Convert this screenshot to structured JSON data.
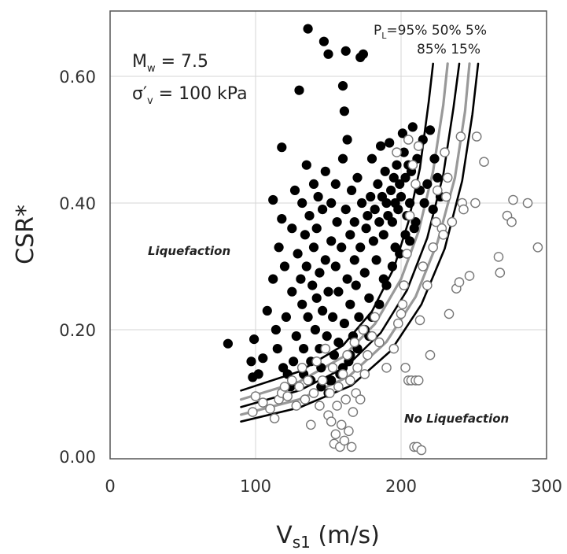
{
  "chart_data": {
    "type": "scatter",
    "xlabel": "V",
    "xlabel_sub": "s1",
    "xlabel_unit": " (m/s)",
    "ylabel": "CSR*",
    "xlim": [
      0,
      300
    ],
    "ylim": [
      0,
      0.7
    ],
    "xticks": [
      {
        "v": 0,
        "label": "0"
      },
      {
        "v": 100,
        "label": "100"
      },
      {
        "v": 200,
        "label": "200"
      },
      {
        "v": 300,
        "label": "300"
      }
    ],
    "yticks": [
      {
        "v": 0.0,
        "label": "0.00"
      },
      {
        "v": 0.2,
        "label": "0.20"
      },
      {
        "v": 0.4,
        "label": "0.40"
      },
      {
        "v": 0.6,
        "label": "0.60"
      }
    ],
    "grid": true,
    "annotations": {
      "magnitude": {
        "main": "M",
        "sub": "w",
        "rest": " = 7.5"
      },
      "stress": {
        "main": "σ′",
        "sub": "v",
        "rest": " = 100 kPa"
      },
      "pl_line1": {
        "main": "P",
        "sub": "L",
        "rest": "=95%  50%  5%"
      },
      "pl_line2": "85% 15%",
      "liquefaction": "Liquefaction",
      "no_liquefaction": "No Liquefaction"
    },
    "curves": [
      {
        "name": "95%",
        "color": "#000000",
        "x": [
          90,
          130,
          160,
          180,
          195,
          205,
          213,
          219,
          222
        ],
        "y": [
          0.104,
          0.134,
          0.175,
          0.229,
          0.297,
          0.37,
          0.455,
          0.56,
          0.62
        ]
      },
      {
        "name": "85%",
        "color": "#999999",
        "x": [
          90,
          130,
          160,
          182,
          200,
          212,
          222,
          229,
          232
        ],
        "y": [
          0.09,
          0.118,
          0.157,
          0.209,
          0.28,
          0.355,
          0.45,
          0.555,
          0.62
        ]
      },
      {
        "name": "50%",
        "color": "#000000",
        "x": [
          90,
          130,
          162,
          186,
          204,
          218,
          229,
          236,
          240
        ],
        "y": [
          0.078,
          0.104,
          0.141,
          0.195,
          0.262,
          0.345,
          0.445,
          0.55,
          0.62
        ]
      },
      {
        "name": "15%",
        "color": "#999999",
        "x": [
          90,
          130,
          164,
          190,
          210,
          225,
          237,
          244,
          247
        ],
        "y": [
          0.066,
          0.09,
          0.126,
          0.181,
          0.252,
          0.338,
          0.44,
          0.545,
          0.62
        ]
      },
      {
        "name": "5%",
        "color": "#000000",
        "x": [
          90,
          130,
          166,
          193,
          214,
          230,
          242,
          249,
          253
        ],
        "y": [
          0.055,
          0.077,
          0.112,
          0.167,
          0.24,
          0.328,
          0.435,
          0.54,
          0.62
        ]
      }
    ],
    "series": [
      {
        "name": "Liquefaction",
        "marker": "filled",
        "points": [
          [
            81,
            0.178
          ],
          [
            97,
            0.15
          ],
          [
            98,
            0.125
          ],
          [
            99,
            0.185
          ],
          [
            102,
            0.13
          ],
          [
            105,
            0.155
          ],
          [
            108,
            0.23
          ],
          [
            112,
            0.28
          ],
          [
            112,
            0.405
          ],
          [
            114,
            0.2
          ],
          [
            115,
            0.17
          ],
          [
            116,
            0.33
          ],
          [
            118,
            0.375
          ],
          [
            118,
            0.488
          ],
          [
            119,
            0.14
          ],
          [
            120,
            0.3
          ],
          [
            121,
            0.22
          ],
          [
            122,
            0.13
          ],
          [
            124,
            0.11
          ],
          [
            125,
            0.36
          ],
          [
            125,
            0.26
          ],
          [
            126,
            0.15
          ],
          [
            127,
            0.42
          ],
          [
            128,
            0.19
          ],
          [
            129,
            0.32
          ],
          [
            130,
            0.578
          ],
          [
            131,
            0.28
          ],
          [
            132,
            0.4
          ],
          [
            132,
            0.24
          ],
          [
            133,
            0.17
          ],
          [
            133,
            0.13
          ],
          [
            134,
            0.35
          ],
          [
            135,
            0.46
          ],
          [
            135,
            0.3
          ],
          [
            136,
            0.675
          ],
          [
            136,
            0.22
          ],
          [
            137,
            0.38
          ],
          [
            138,
            0.15
          ],
          [
            138,
            0.12
          ],
          [
            139,
            0.27
          ],
          [
            140,
            0.43
          ],
          [
            140,
            0.33
          ],
          [
            141,
            0.2
          ],
          [
            142,
            0.25
          ],
          [
            142,
            0.36
          ],
          [
            143,
            0.41
          ],
          [
            144,
            0.17
          ],
          [
            144,
            0.29
          ],
          [
            145,
            0.14
          ],
          [
            146,
            0.23
          ],
          [
            146,
            0.39
          ],
          [
            147,
            0.655
          ],
          [
            148,
            0.31
          ],
          [
            148,
            0.45
          ],
          [
            149,
            0.19
          ],
          [
            150,
            0.635
          ],
          [
            150,
            0.26
          ],
          [
            151,
            0.12
          ],
          [
            152,
            0.34
          ],
          [
            152,
            0.4
          ],
          [
            153,
            0.22
          ],
          [
            154,
            0.16
          ],
          [
            155,
            0.3
          ],
          [
            155,
            0.43
          ],
          [
            156,
            0.37
          ],
          [
            157,
            0.18
          ],
          [
            157,
            0.26
          ],
          [
            158,
            0.13
          ],
          [
            159,
            0.33
          ],
          [
            160,
            0.585
          ],
          [
            160,
            0.47
          ],
          [
            161,
            0.21
          ],
          [
            161,
            0.545
          ],
          [
            162,
            0.64
          ],
          [
            162,
            0.39
          ],
          [
            163,
            0.28
          ],
          [
            163,
            0.5
          ],
          [
            164,
            0.15
          ],
          [
            165,
            0.24
          ],
          [
            165,
            0.35
          ],
          [
            166,
            0.42
          ],
          [
            167,
            0.19
          ],
          [
            168,
            0.31
          ],
          [
            168,
            0.37
          ],
          [
            169,
            0.27
          ],
          [
            170,
            0.44
          ],
          [
            171,
            0.22
          ],
          [
            172,
            0.63
          ],
          [
            172,
            0.33
          ],
          [
            173,
            0.4
          ],
          [
            174,
            0.635
          ],
          [
            175,
            0.29
          ],
          [
            176,
            0.36
          ],
          [
            177,
            0.38
          ],
          [
            178,
            0.25
          ],
          [
            179,
            0.41
          ],
          [
            180,
            0.47
          ],
          [
            181,
            0.34
          ],
          [
            182,
            0.39
          ],
          [
            183,
            0.31
          ],
          [
            184,
            0.43
          ],
          [
            185,
            0.37
          ],
          [
            186,
            0.49
          ],
          [
            187,
            0.41
          ],
          [
            188,
            0.35
          ],
          [
            189,
            0.45
          ],
          [
            190,
            0.4
          ],
          [
            191,
            0.38
          ],
          [
            192,
            0.495
          ],
          [
            193,
            0.42
          ],
          [
            194,
            0.37
          ],
          [
            195,
            0.44
          ],
          [
            196,
            0.4
          ],
          [
            197,
            0.46
          ],
          [
            198,
            0.39
          ],
          [
            199,
            0.43
          ],
          [
            200,
            0.41
          ],
          [
            201,
            0.51
          ],
          [
            202,
            0.48
          ],
          [
            203,
            0.44
          ],
          [
            204,
            0.38
          ],
          [
            205,
            0.46
          ],
          [
            206,
            0.4
          ],
          [
            207,
            0.45
          ],
          [
            208,
            0.52
          ],
          [
            210,
            0.37
          ],
          [
            211,
            0.47
          ],
          [
            213,
            0.42
          ],
          [
            215,
            0.5
          ],
          [
            216,
            0.4
          ],
          [
            218,
            0.43
          ],
          [
            220,
            0.515
          ],
          [
            222,
            0.39
          ],
          [
            223,
            0.47
          ],
          [
            225,
            0.44
          ],
          [
            227,
            0.41
          ],
          [
            150,
            0.1
          ],
          [
            152,
            0.12
          ],
          [
            145,
            0.11
          ],
          [
            160,
            0.14
          ],
          [
            165,
            0.16
          ],
          [
            170,
            0.17
          ],
          [
            175,
            0.2
          ],
          [
            178,
            0.19
          ],
          [
            180,
            0.22
          ],
          [
            185,
            0.24
          ],
          [
            188,
            0.28
          ],
          [
            190,
            0.27
          ],
          [
            194,
            0.3
          ],
          [
            196,
            0.33
          ],
          [
            199,
            0.32
          ],
          [
            203,
            0.35
          ],
          [
            206,
            0.34
          ],
          [
            209,
            0.36
          ]
        ]
      },
      {
        "name": "No Liquefaction",
        "marker": "open",
        "points": [
          [
            98,
            0.07
          ],
          [
            100,
            0.095
          ],
          [
            105,
            0.085
          ],
          [
            110,
            0.075
          ],
          [
            113,
            0.06
          ],
          [
            116,
            0.09
          ],
          [
            118,
            0.1
          ],
          [
            120,
            0.11
          ],
          [
            122,
            0.095
          ],
          [
            125,
            0.12
          ],
          [
            128,
            0.08
          ],
          [
            130,
            0.11
          ],
          [
            132,
            0.14
          ],
          [
            134,
            0.09
          ],
          [
            136,
            0.12
          ],
          [
            138,
            0.05
          ],
          [
            140,
            0.1
          ],
          [
            142,
            0.15
          ],
          [
            144,
            0.08
          ],
          [
            146,
            0.12
          ],
          [
            148,
            0.17
          ],
          [
            150,
            0.065
          ],
          [
            151,
            0.1
          ],
          [
            152,
            0.055
          ],
          [
            153,
            0.14
          ],
          [
            154,
            0.02
          ],
          [
            155,
            0.035
          ],
          [
            156,
            0.08
          ],
          [
            157,
            0.11
          ],
          [
            158,
            0.015
          ],
          [
            159,
            0.05
          ],
          [
            160,
            0.13
          ],
          [
            161,
            0.025
          ],
          [
            162,
            0.09
          ],
          [
            163,
            0.16
          ],
          [
            164,
            0.04
          ],
          [
            165,
            0.12
          ],
          [
            166,
            0.015
          ],
          [
            167,
            0.07
          ],
          [
            168,
            0.18
          ],
          [
            169,
            0.1
          ],
          [
            170,
            0.14
          ],
          [
            172,
            0.09
          ],
          [
            174,
            0.2
          ],
          [
            175,
            0.13
          ],
          [
            177,
            0.16
          ],
          [
            180,
            0.19
          ],
          [
            182,
            0.22
          ],
          [
            185,
            0.18
          ],
          [
            190,
            0.14
          ],
          [
            195,
            0.17
          ],
          [
            198,
            0.21
          ],
          [
            200,
            0.225
          ],
          [
            201,
            0.24
          ],
          [
            203,
            0.14
          ],
          [
            205,
            0.12
          ],
          [
            207,
            0.12
          ],
          [
            209,
            0.015
          ],
          [
            210,
            0.12
          ],
          [
            211,
            0.015
          ],
          [
            212,
            0.12
          ],
          [
            213,
            0.215
          ],
          [
            214,
            0.01
          ],
          [
            215,
            0.3
          ],
          [
            218,
            0.27
          ],
          [
            220,
            0.16
          ],
          [
            222,
            0.33
          ],
          [
            224,
            0.37
          ],
          [
            225,
            0.42
          ],
          [
            228,
            0.36
          ],
          [
            229,
            0.35
          ],
          [
            230,
            0.48
          ],
          [
            231,
            0.41
          ],
          [
            232,
            0.44
          ],
          [
            233,
            0.225
          ],
          [
            235,
            0.37
          ],
          [
            238,
            0.265
          ],
          [
            240,
            0.275
          ],
          [
            241,
            0.505
          ],
          [
            242,
            0.4
          ],
          [
            243,
            0.39
          ],
          [
            247,
            0.285
          ],
          [
            251,
            0.4
          ],
          [
            252,
            0.505
          ],
          [
            257,
            0.465
          ],
          [
            267,
            0.315
          ],
          [
            268,
            0.29
          ],
          [
            273,
            0.38
          ],
          [
            276,
            0.37
          ],
          [
            277,
            0.405
          ],
          [
            287,
            0.4
          ],
          [
            294,
            0.33
          ],
          [
            197,
            0.48
          ],
          [
            205,
            0.5
          ],
          [
            202,
            0.27
          ],
          [
            204,
            0.32
          ],
          [
            206,
            0.38
          ],
          [
            208,
            0.46
          ],
          [
            210,
            0.43
          ],
          [
            212,
            0.49
          ]
        ]
      }
    ]
  }
}
